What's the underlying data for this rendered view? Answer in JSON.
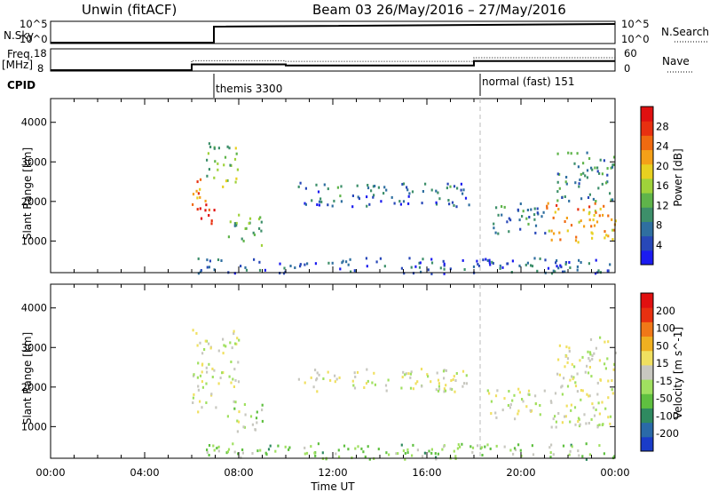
{
  "header": {
    "station": "Unwin (fitACF)",
    "beam_date": "Beam 03 26/May/2016 – 27/May/2016"
  },
  "top_panels": {
    "nsky_label": "N.Sky",
    "nsky_ticks": [
      "10^5",
      "10^0"
    ],
    "nsearch_label": "N.Search",
    "nsearch_ticks": [
      "10^5",
      "10^0"
    ],
    "freq_label": "Freq.",
    "freq_unit": "[MHz]",
    "freq_ticks": [
      "18",
      "8"
    ],
    "nave_label": "Nave",
    "nave_ticks": [
      "60",
      "0"
    ],
    "cpid_label": "CPID",
    "cpid_segments": [
      {
        "label": "themis 3300",
        "start": 6
      },
      {
        "label": "normal (fast) 151",
        "start": 18
      }
    ]
  },
  "chart_data": [
    {
      "type": "heatmap",
      "name": "power",
      "xlabel": "Time UT",
      "ylabel": "Slant Range [km]",
      "xlim": [
        0,
        24
      ],
      "ylim": [
        200,
        4600
      ],
      "yticks": [
        "1000",
        "2000",
        "3000",
        "4000"
      ],
      "colorbar": {
        "label": "Power [dB]",
        "ticks": [
          "4",
          "8",
          "12",
          "16",
          "20",
          "24",
          "28"
        ],
        "range": [
          0,
          32
        ],
        "colors": [
          "#1b1bf0",
          "#2848b8",
          "#2f6fa0",
          "#3d8f6a",
          "#5fb44a",
          "#9fd23a",
          "#e8d020",
          "#f4a018",
          "#f06a10",
          "#e83010",
          "#e01010"
        ]
      },
      "regions": [
        {
          "t": [
            6.0,
            7.0
          ],
          "r": [
            1400,
            2000
          ],
          "v": 28
        },
        {
          "t": [
            6.0,
            6.6
          ],
          "r": [
            2000,
            2800
          ],
          "v": 22
        },
        {
          "t": [
            6.6,
            8.0
          ],
          "r": [
            2400,
            3500
          ],
          "v": 14
        },
        {
          "t": [
            7.5,
            9.0
          ],
          "r": [
            900,
            1700
          ],
          "v": 12
        },
        {
          "t": [
            10.5,
            17.8
          ],
          "r": [
            1900,
            2500
          ],
          "v": 7
        },
        {
          "t": [
            18.5,
            21.0
          ],
          "r": [
            1200,
            2000
          ],
          "v": 8
        },
        {
          "t": [
            21.0,
            24.0
          ],
          "r": [
            1000,
            2000
          ],
          "v": 22
        },
        {
          "t": [
            21.5,
            24.0
          ],
          "r": [
            2000,
            3300
          ],
          "v": 10
        },
        {
          "t": [
            6.0,
            24.0
          ],
          "r": [
            200,
            600
          ],
          "v": 6
        }
      ]
    },
    {
      "type": "heatmap",
      "name": "velocity",
      "xlabel": "Time UT",
      "ylabel": "Slant Range [km]",
      "xlim": [
        0,
        24
      ],
      "ylim": [
        200,
        4600
      ],
      "yticks": [
        "1000",
        "2000",
        "3000",
        "4000"
      ],
      "xticks": [
        "00:00",
        "04:00",
        "08:00",
        "12:00",
        "16:00",
        "20:00",
        "00:00"
      ],
      "colorbar": {
        "label": "Velocity [m s^-1]",
        "ticks": [
          "200",
          "100",
          "50",
          "15",
          "-15",
          "-50",
          "-100",
          "-200"
        ],
        "range": [
          -250,
          250
        ],
        "colors": [
          "#1a3cc8",
          "#2a6aa8",
          "#2f8a60",
          "#5fc040",
          "#a0e060",
          "#c8c8c0",
          "#f0e060",
          "#f0b020",
          "#f07818",
          "#e83010",
          "#e01010"
        ]
      },
      "regions": [
        {
          "t": [
            6.0,
            7.0
          ],
          "r": [
            1400,
            2000
          ],
          "v": 0
        },
        {
          "t": [
            6.0,
            8.0
          ],
          "r": [
            2000,
            3500
          ],
          "v": 0
        },
        {
          "t": [
            7.5,
            9.0
          ],
          "r": [
            900,
            1700
          ],
          "v": -30
        },
        {
          "t": [
            10.5,
            17.8
          ],
          "r": [
            1900,
            2500
          ],
          "v": 0
        },
        {
          "t": [
            18.5,
            21.0
          ],
          "r": [
            1200,
            2000
          ],
          "v": 0
        },
        {
          "t": [
            21.0,
            24.0
          ],
          "r": [
            1000,
            2000
          ],
          "v": 0
        },
        {
          "t": [
            21.5,
            24.0
          ],
          "r": [
            2000,
            3300
          ],
          "v": 0
        },
        {
          "t": [
            6.0,
            24.0
          ],
          "r": [
            200,
            600
          ],
          "v": -60
        }
      ]
    }
  ],
  "time_series": {
    "freq_mhz": [
      {
        "t": [
          6,
          10
        ],
        "v": 11
      },
      {
        "t": [
          10,
          18
        ],
        "v": 10.5
      },
      {
        "t": [
          18,
          24
        ],
        "v": 12.5
      }
    ],
    "nave": [
      {
        "t": [
          6,
          10
        ],
        "v": 28
      },
      {
        "t": [
          10,
          18
        ],
        "v": 26
      },
      {
        "t": [
          18,
          24
        ],
        "v": 36
      }
    ]
  }
}
